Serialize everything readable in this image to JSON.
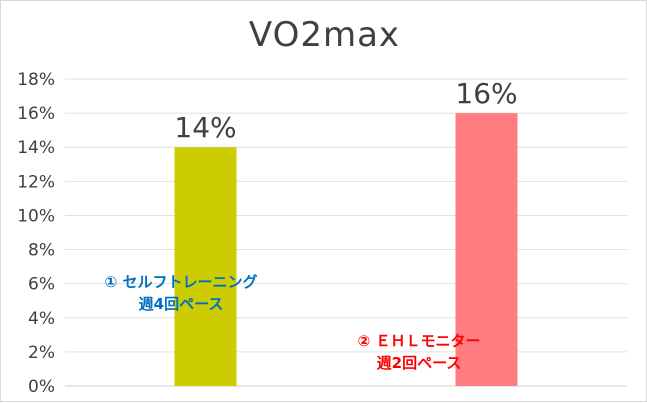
{
  "chart_data": {
    "type": "bar",
    "title": "VO2max",
    "categories": [
      "",
      ""
    ],
    "values": [
      14,
      16
    ],
    "data_labels": [
      "14%",
      "16%"
    ],
    "bar_colors": [
      "#cccc00",
      "#ff7c80"
    ],
    "ylim": [
      0,
      18
    ],
    "yticks": [
      "0%",
      "2%",
      "4%",
      "6%",
      "8%",
      "10%",
      "12%",
      "14%",
      "16%",
      "18%"
    ],
    "grid": true,
    "gridline_color": "#e0e0e0",
    "annotations": [
      {
        "lines": [
          "① セルフトレーニング",
          "週4回ペース"
        ],
        "color": "#0070c0"
      },
      {
        "lines": [
          "② ＥＨＬモニター",
          "週2回ペース"
        ],
        "color": "#ff0000"
      }
    ]
  }
}
